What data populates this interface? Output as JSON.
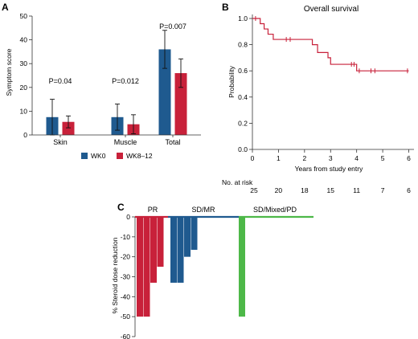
{
  "panels": {
    "A": {
      "letter": "A",
      "chart_data": {
        "type": "bar",
        "ylabel": "Symptom score",
        "ylim": [
          0,
          50
        ],
        "yticks": [
          0,
          10,
          20,
          30,
          40,
          50
        ],
        "categories": [
          "Skin",
          "Muscle",
          "Total"
        ],
        "series": [
          {
            "name": "WK0",
            "color": "#1f5a8f",
            "values": [
              7.5,
              7.5,
              36
            ],
            "err": [
              7.5,
              5.5,
              8
            ]
          },
          {
            "name": "WK8–12",
            "color": "#c8213a",
            "values": [
              5.5,
              4.5,
              26
            ],
            "err": [
              2.5,
              4,
              6
            ]
          }
        ],
        "annotations": [
          "P=0.04",
          "P=0.012",
          "P=0.007"
        ]
      }
    },
    "B": {
      "letter": "B",
      "chart_data": {
        "type": "line",
        "title": "Overall survival",
        "xlabel": "Years from study entry",
        "ylabel": "Probability",
        "xlim": [
          0,
          6.2
        ],
        "ylim": [
          0,
          1.0
        ],
        "xticks": [
          0,
          1,
          2,
          3,
          4,
          5,
          6
        ],
        "yticks": [
          0.0,
          0.2,
          0.4,
          0.6,
          0.8,
          1.0
        ],
        "color": "#c8213a",
        "steps": [
          [
            0,
            1.0
          ],
          [
            0.3,
            0.96
          ],
          [
            0.45,
            0.92
          ],
          [
            0.6,
            0.88
          ],
          [
            0.8,
            0.84
          ],
          [
            2.3,
            0.8
          ],
          [
            2.5,
            0.74
          ],
          [
            2.9,
            0.7
          ],
          [
            3.0,
            0.65
          ],
          [
            4.0,
            0.6
          ],
          [
            6.0,
            0.6
          ]
        ],
        "censors": [
          [
            0.12,
            1.0
          ],
          [
            1.3,
            0.84
          ],
          [
            1.45,
            0.84
          ],
          [
            3.8,
            0.65
          ],
          [
            3.9,
            0.65
          ],
          [
            4.1,
            0.6
          ],
          [
            4.55,
            0.6
          ],
          [
            4.7,
            0.6
          ],
          [
            5.95,
            0.6
          ]
        ],
        "risk_label": "No. at risk",
        "at_risk": [
          "25",
          "20",
          "18",
          "15",
          "11",
          "7",
          "6"
        ]
      }
    },
    "C": {
      "letter": "C",
      "chart_data": {
        "type": "bar",
        "ylabel": "% Steroid dose reduction",
        "ylim": [
          -60,
          0
        ],
        "yticks": [
          0,
          -10,
          -20,
          -30,
          -40,
          -50,
          -60
        ],
        "groups": [
          {
            "name": "PR",
            "color": "#c8213a",
            "values": [
              -50,
              -50,
              -33,
              -25
            ]
          },
          {
            "name": "SD/MR",
            "color": "#1f5a8f",
            "values": [
              -33,
              -33,
              -20,
              -16.5
            ]
          },
          {
            "name": "SD/Mixed/PD",
            "color": "#4db848",
            "values": [
              -50
            ]
          }
        ]
      }
    }
  }
}
